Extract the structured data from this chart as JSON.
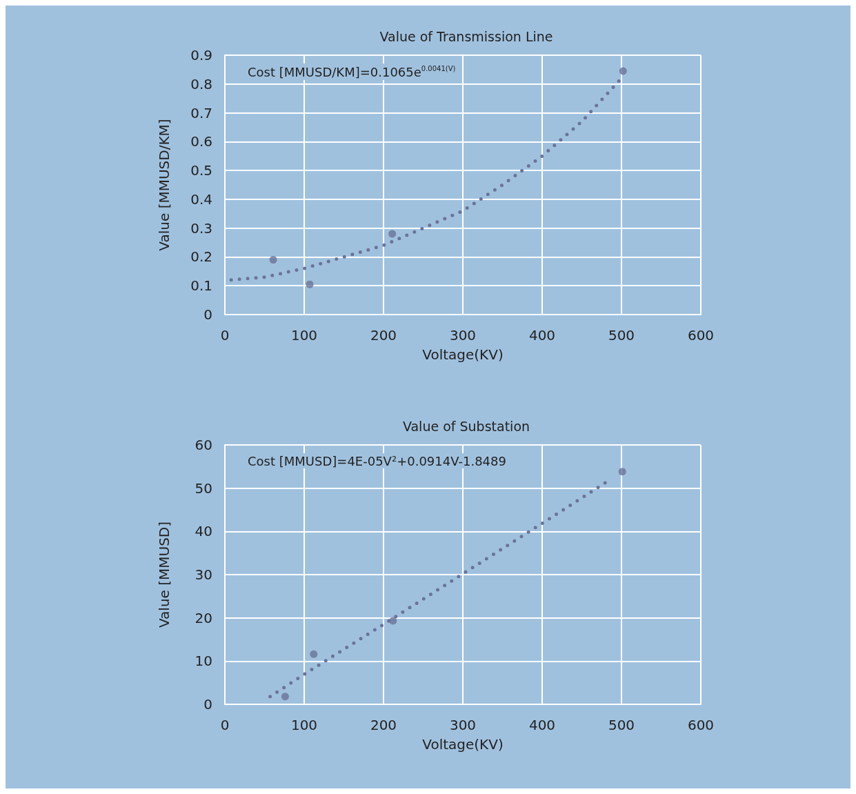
{
  "chart_data": [
    {
      "type": "scatter",
      "title": "Value of Transmission Line",
      "xlabel": "Voltage(KV)",
      "ylabel": "Value [MMUSD/KM]",
      "xlim": [
        0,
        600
      ],
      "xticks": [
        0,
        100,
        200,
        300,
        400,
        500,
        600
      ],
      "ylim": [
        0,
        0.9
      ],
      "yticks": [
        0,
        0.1,
        0.2,
        0.3,
        0.4,
        0.5,
        0.6,
        0.7,
        0.8,
        0.9
      ],
      "grid": true,
      "marker": "circle",
      "annotations": [
        "Cost [MMUSD/KM]=0.1065e$^{0.0041(V)}$"
      ],
      "series": [
        {
          "type": "scatter",
          "color": "#6a7399",
          "x": [
            61,
            107,
            211,
            502
          ],
          "values": [
            0.19,
            0.105,
            0.28,
            0.845
          ]
        },
        {
          "type": "line",
          "color": "#6a7399",
          "line_style": "dotted",
          "marker": "none",
          "x": [
            8,
            50,
            100,
            150,
            200,
            250,
            300,
            350,
            400,
            450,
            500
          ],
          "values": [
            0.12,
            0.13,
            0.16,
            0.2,
            0.24,
            0.3,
            0.36,
            0.45,
            0.55,
            0.67,
            0.82
          ]
        }
      ]
    },
    {
      "type": "scatter",
      "title": "Value of Substation",
      "xlabel": "Voltage(KV)",
      "ylabel": "Value [MMUSD]",
      "xlim": [
        0,
        600
      ],
      "xticks": [
        0,
        100,
        200,
        300,
        400,
        500,
        600
      ],
      "ylim": [
        0,
        60
      ],
      "yticks": [
        0,
        10,
        20,
        30,
        40,
        50,
        60
      ],
      "grid": true,
      "marker": "circle",
      "annotations": [
        "Cost [MMUSD]=4E-05V²+0.0914V-1.8489"
      ],
      "series": [
        {
          "type": "scatter",
          "color": "#6a7399",
          "x": [
            76,
            112,
            212,
            501
          ],
          "values": [
            1.8,
            11.6,
            19.3,
            53.8
          ]
        },
        {
          "type": "line",
          "color": "#6a7399",
          "line_style": "dotted",
          "marker": "none",
          "x": [
            57,
            104,
            116,
            200,
            295,
            402,
            485
          ],
          "values": [
            1.8,
            7.4,
            8.8,
            18.5,
            29.6,
            42.1,
            51.9
          ]
        }
      ]
    }
  ]
}
